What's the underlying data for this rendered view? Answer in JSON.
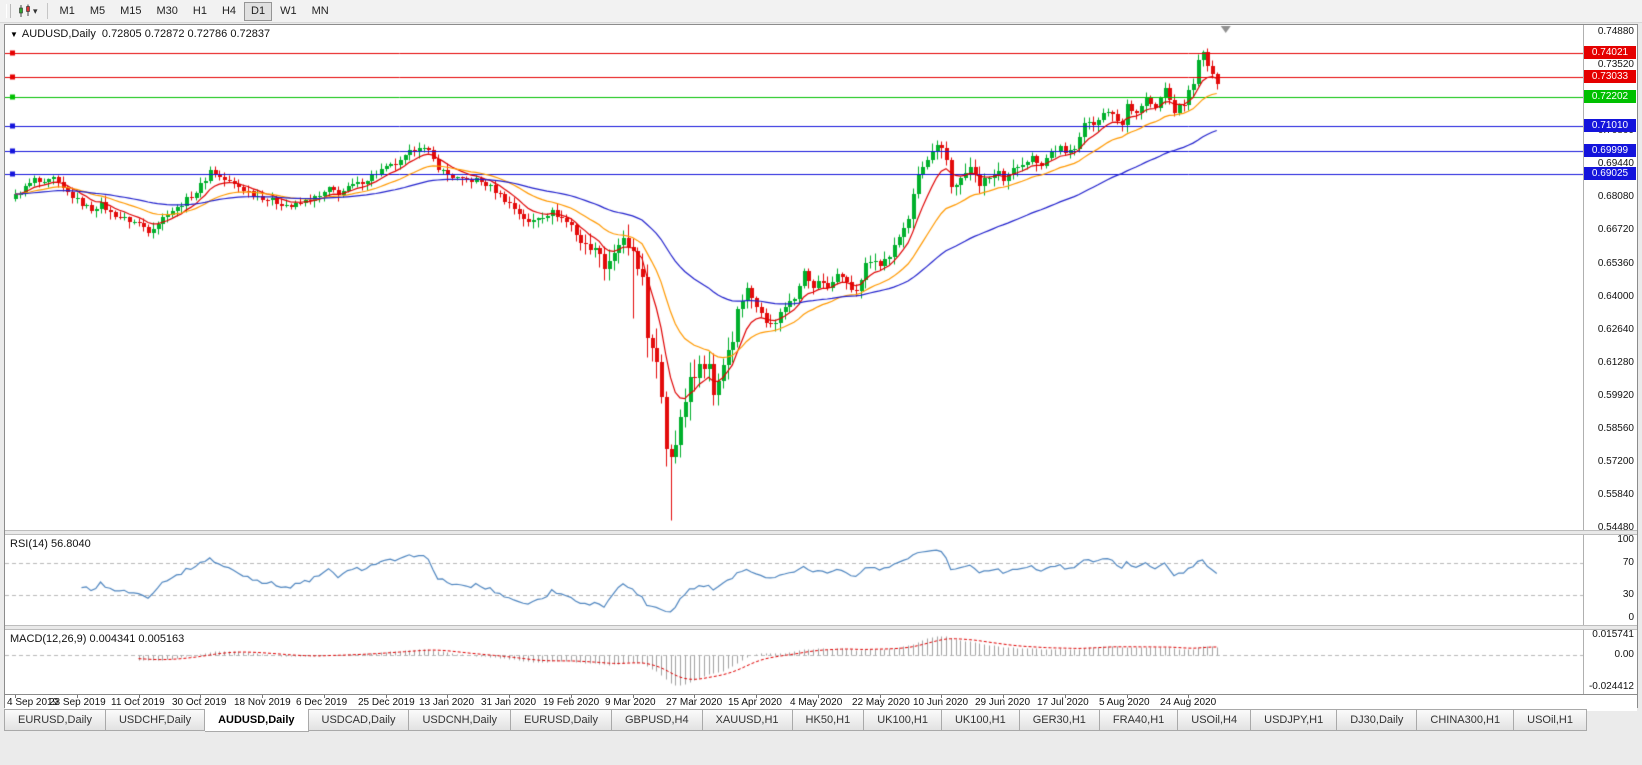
{
  "icons": {
    "collapse": "▼",
    "caret": "▾"
  },
  "toolbar": {
    "timeframes": [
      "M1",
      "M5",
      "M15",
      "M30",
      "H1",
      "H4",
      "D1",
      "W1",
      "MN"
    ],
    "active_timeframe": "D1"
  },
  "chart": {
    "title_symbol": "AUDUSD,Daily",
    "title_ohlc": "0.72805 0.72872 0.72786 0.72837",
    "price_axis_labels": [
      "0.74880",
      "0.73520",
      "0.72160",
      "0.70800",
      "0.69440",
      "0.68080",
      "0.66720",
      "0.65360",
      "0.64000",
      "0.62640",
      "0.61280",
      "0.59920",
      "0.58560",
      "0.57200",
      "0.55840",
      "0.54480"
    ],
    "price_max": 0.7517,
    "price_min": 0.544,
    "hlines": [
      {
        "label": "0.74021",
        "price": 0.74021,
        "color": "#e50000"
      },
      {
        "label": "0.73033",
        "price": 0.73033,
        "color": "#e50000"
      },
      {
        "label": "0.72202",
        "price": 0.72202,
        "color": "#00c000"
      },
      {
        "label": "0.71010",
        "price": 0.7101,
        "color": "#1414dc"
      },
      {
        "label": "0.69999",
        "price": 0.69999,
        "color": "#1414dc"
      },
      {
        "label": "0.69025",
        "price": 0.69025,
        "color": "#1414dc"
      }
    ],
    "colors": {
      "up": "#00b02c",
      "down": "#e30b0b",
      "ma_fast": "#e00000",
      "ma_mid": "#ff9900",
      "ma_slow": "#2121cd",
      "rsi_line": "#4f86c0",
      "macd_hist": "#a2a2a2",
      "macd_signal": "#e00000",
      "level_dash": "#b8b8b8"
    }
  },
  "chart_data": {
    "type": "candlestick",
    "symbol": "AUDUSD",
    "timeframe": "Daily",
    "candle_count": 254,
    "first_open": 0.68,
    "close_anchors": [
      [
        0,
        0.6815
      ],
      [
        2,
        0.685
      ],
      [
        4,
        0.688
      ],
      [
        6,
        0.6862
      ],
      [
        8,
        0.6885
      ],
      [
        10,
        0.684
      ],
      [
        13,
        0.6795
      ],
      [
        16,
        0.6758
      ],
      [
        18,
        0.678
      ],
      [
        20,
        0.6742
      ],
      [
        23,
        0.672
      ],
      [
        26,
        0.67
      ],
      [
        28,
        0.6672
      ],
      [
        30,
        0.6705
      ],
      [
        32,
        0.6745
      ],
      [
        34,
        0.6762
      ],
      [
        36,
        0.68
      ],
      [
        38,
        0.6832
      ],
      [
        40,
        0.6885
      ],
      [
        41,
        0.692
      ],
      [
        43,
        0.6892
      ],
      [
        46,
        0.6862
      ],
      [
        49,
        0.6832
      ],
      [
        52,
        0.6808
      ],
      [
        55,
        0.6788
      ],
      [
        58,
        0.677
      ],
      [
        61,
        0.6792
      ],
      [
        64,
        0.6812
      ],
      [
        66,
        0.6842
      ],
      [
        68,
        0.6825
      ],
      [
        71,
        0.6856
      ],
      [
        74,
        0.6882
      ],
      [
        77,
        0.692
      ],
      [
        79,
        0.6938
      ],
      [
        81,
        0.6952
      ],
      [
        83,
        0.6992
      ],
      [
        85,
        0.7022
      ],
      [
        87,
        0.6992
      ],
      [
        89,
        0.6932
      ],
      [
        91,
        0.6902
      ],
      [
        94,
        0.6876
      ],
      [
        97,
        0.688
      ],
      [
        100,
        0.6852
      ],
      [
        103,
        0.68
      ],
      [
        106,
        0.6745
      ],
      [
        108,
        0.67
      ],
      [
        110,
        0.6726
      ],
      [
        113,
        0.6746
      ],
      [
        115,
        0.6722
      ],
      [
        117,
        0.6692
      ],
      [
        119,
        0.6622
      ],
      [
        121,
        0.6602
      ],
      [
        123,
        0.6585
      ],
      [
        124,
        0.6515
      ],
      [
        126,
        0.658
      ],
      [
        128,
        0.6632
      ],
      [
        130,
        0.658
      ],
      [
        131,
        0.6502
      ],
      [
        132,
        0.648
      ],
      [
        133,
        0.6235
      ],
      [
        134,
        0.618
      ],
      [
        135,
        0.612
      ],
      [
        136,
        0.599
      ],
      [
        137,
        0.578
      ],
      [
        138,
        0.5745
      ],
      [
        139,
        0.5802
      ],
      [
        140,
        0.5902
      ],
      [
        141,
        0.5962
      ],
      [
        142,
        0.6072
      ],
      [
        143,
        0.6065
      ],
      [
        144,
        0.6132
      ],
      [
        145,
        0.6092
      ],
      [
        146,
        0.6132
      ],
      [
        147,
        0.5995
      ],
      [
        148,
        0.6052
      ],
      [
        149,
        0.6122
      ],
      [
        150,
        0.6182
      ],
      [
        151,
        0.6215
      ],
      [
        152,
        0.6352
      ],
      [
        154,
        0.6432
      ],
      [
        156,
        0.6362
      ],
      [
        158,
        0.6292
      ],
      [
        160,
        0.6302
      ],
      [
        162,
        0.6362
      ],
      [
        164,
        0.6392
      ],
      [
        166,
        0.6512
      ],
      [
        168,
        0.6432
      ],
      [
        169,
        0.6465
      ],
      [
        171,
        0.6436
      ],
      [
        173,
        0.6492
      ],
      [
        175,
        0.6462
      ],
      [
        177,
        0.6412
      ],
      [
        179,
        0.6532
      ],
      [
        181,
        0.6556
      ],
      [
        182,
        0.6536
      ],
      [
        184,
        0.6566
      ],
      [
        186,
        0.6645
      ],
      [
        188,
        0.6722
      ],
      [
        190,
        0.6902
      ],
      [
        192,
        0.6962
      ],
      [
        194,
        0.7012
      ],
      [
        195,
        0.7002
      ],
      [
        196,
        0.6962
      ],
      [
        197,
        0.6852
      ],
      [
        199,
        0.6882
      ],
      [
        201,
        0.6932
      ],
      [
        203,
        0.6862
      ],
      [
        205,
        0.6892
      ],
      [
        207,
        0.6912
      ],
      [
        208,
        0.6866
      ],
      [
        210,
        0.6922
      ],
      [
        212,
        0.6952
      ],
      [
        214,
        0.6972
      ],
      [
        216,
        0.6946
      ],
      [
        218,
        0.6992
      ],
      [
        220,
        0.7012
      ],
      [
        221,
        0.6982
      ],
      [
        223,
        0.7016
      ],
      [
        225,
        0.7112
      ],
      [
        227,
        0.7106
      ],
      [
        229,
        0.7162
      ],
      [
        231,
        0.7142
      ],
      [
        233,
        0.7106
      ],
      [
        234,
        0.7192
      ],
      [
        236,
        0.7156
      ],
      [
        238,
        0.7216
      ],
      [
        240,
        0.7172
      ],
      [
        242,
        0.7256
      ],
      [
        244,
        0.7162
      ],
      [
        246,
        0.7192
      ],
      [
        247,
        0.7242
      ],
      [
        248,
        0.7282
      ],
      [
        249,
        0.7366
      ],
      [
        250,
        0.7402
      ],
      [
        251,
        0.7352
      ],
      [
        252,
        0.7305
      ],
      [
        253,
        0.7284
      ]
    ],
    "wick_overrides": {
      "130": {
        "low": 0.6313
      },
      "138": {
        "low": 0.548
      },
      "195": {
        "high": 0.704
      },
      "250": {
        "high": 0.7414
      }
    },
    "date_labels": [
      "4 Sep 2019",
      "23 Sep 2019",
      "11 Oct 2019",
      "30 Oct 2019",
      "18 Nov 2019",
      "6 Dec 2019",
      "25 Dec 2019",
      "13 Jan 2020",
      "31 Jan 2020",
      "19 Feb 2020",
      "9 Mar 2020",
      "27 Mar 2020",
      "15 Apr 2020",
      "4 May 2020",
      "22 May 2020",
      "10 Jun 2020",
      "29 Jun 2020",
      "17 Jul 2020",
      "5 Aug 2020",
      "24 Aug 2020"
    ],
    "date_tick_step": 13,
    "moving_averages": [
      {
        "period": 8,
        "color": "#e00000"
      },
      {
        "period": 21,
        "color": "#ff9900"
      },
      {
        "period": 55,
        "color": "#2121cd"
      }
    ]
  },
  "rsi": {
    "header": "RSI(14) 56.8040",
    "period": 14,
    "levels": [
      70,
      30
    ],
    "axis": [
      {
        "label": "100",
        "value": 100
      },
      {
        "label": "70",
        "value": 70
      },
      {
        "label": "30",
        "value": 30
      },
      {
        "label": "0",
        "value": 0
      }
    ]
  },
  "macd": {
    "header": "MACD(12,26,9) 0.004341 0.005163",
    "fast": 12,
    "slow": 26,
    "signal": 9,
    "range_max": 0.015741,
    "range_min": -0.024412,
    "axis": [
      {
        "label": "0.015741",
        "value": 0.015741
      },
      {
        "label": "0.00",
        "value": 0
      },
      {
        "label": "-0.024412",
        "value": -0.024412
      }
    ]
  },
  "tabs": {
    "active_index": 2,
    "items": [
      "EURUSD,Daily",
      "USDCHF,Daily",
      "AUDUSD,Daily",
      "USDCAD,Daily",
      "USDCNH,Daily",
      "EURUSD,Daily",
      "GBPUSD,H4",
      "XAUUSD,H1",
      "HK50,H1",
      "UK100,H1",
      "UK100,H1",
      "GER30,H1",
      "FRA40,H1",
      "USOil,H4",
      "USDJPY,H1",
      "DJ30,Daily",
      "CHINA300,H1",
      "USOil,H1"
    ]
  }
}
